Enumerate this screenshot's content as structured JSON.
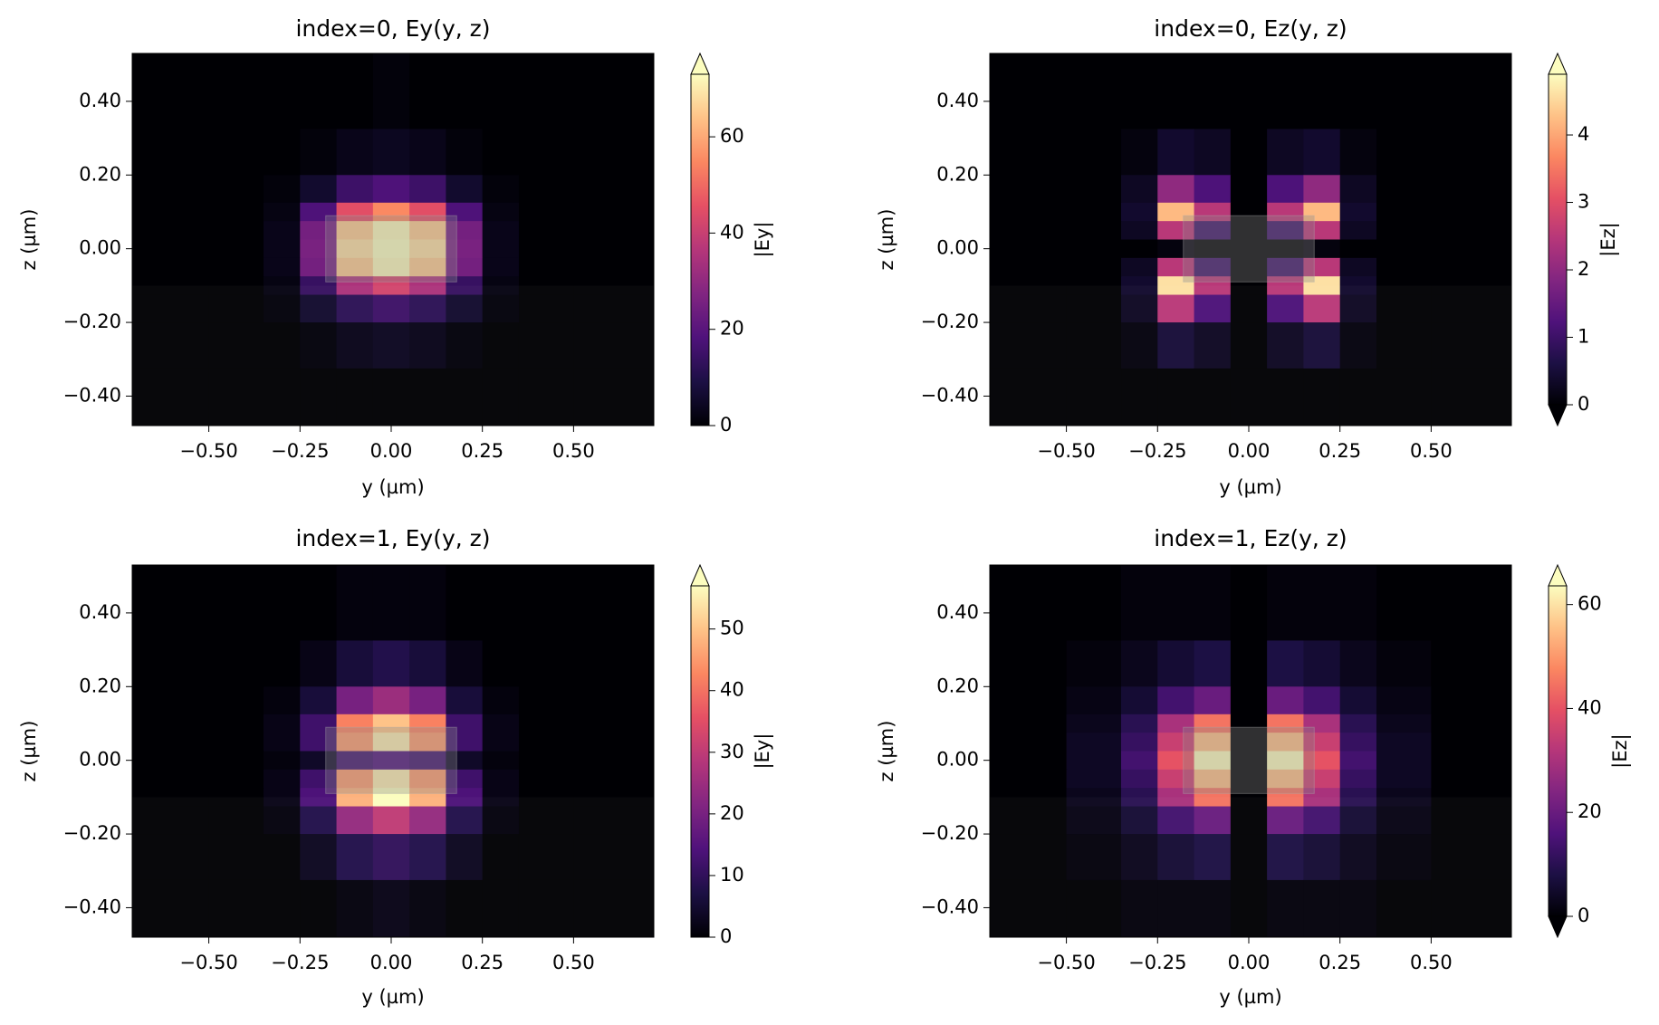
{
  "chart_data": [
    {
      "type": "heatmap",
      "title": "index=0, Ey(y, z)",
      "xlabel": "y (µm)",
      "ylabel": "z (µm)",
      "colorbar_label": "|Ey|",
      "colormap": "magma",
      "extend": "max",
      "xlim": [
        -0.71,
        0.72
      ],
      "ylim": [
        -0.48,
        0.53
      ],
      "xticks": [
        {
          "value": -0.5,
          "label": "−0.50"
        },
        {
          "value": -0.25,
          "label": "−0.25"
        },
        {
          "value": 0,
          "label": "0.00"
        },
        {
          "value": 0.25,
          "label": "0.25"
        },
        {
          "value": 0.5,
          "label": "0.50"
        }
      ],
      "yticks": [
        {
          "value": -0.4,
          "label": "−0.40"
        },
        {
          "value": -0.2,
          "label": "−0.20"
        },
        {
          "value": 0,
          "label": "0.00"
        },
        {
          "value": 0.2,
          "label": "0.20"
        },
        {
          "value": 0.4,
          "label": "0.40"
        }
      ],
      "clim": [
        0,
        73
      ],
      "cticks": [
        0,
        20,
        40,
        60
      ],
      "x": [
        -0.6,
        -0.4,
        -0.3,
        -0.2,
        -0.1,
        0,
        0.1,
        0.2,
        0.3,
        0.4,
        0.6
      ],
      "y": [
        0.4,
        0.25,
        0.15,
        0.1,
        0.05,
        0,
        -0.05,
        -0.1,
        -0.15,
        -0.25,
        -0.4
      ],
      "z": [
        [
          0,
          0,
          0,
          0,
          0,
          1,
          0,
          0,
          0,
          0,
          0
        ],
        [
          0,
          0,
          0,
          1,
          3,
          4,
          3,
          1,
          0,
          0,
          0
        ],
        [
          0,
          0,
          1,
          6,
          15,
          18,
          15,
          6,
          1,
          0,
          0
        ],
        [
          0,
          0,
          2,
          18,
          45,
          55,
          45,
          18,
          2,
          0,
          0
        ],
        [
          0,
          0,
          3,
          25,
          65,
          72,
          65,
          25,
          3,
          0,
          0
        ],
        [
          0,
          0,
          3,
          26,
          68,
          73,
          68,
          26,
          3,
          0,
          0
        ],
        [
          0,
          0,
          3,
          25,
          65,
          72,
          65,
          25,
          3,
          0,
          0
        ],
        [
          0,
          0,
          2,
          14,
          35,
          42,
          35,
          14,
          2,
          0,
          0
        ],
        [
          0,
          0,
          1,
          6,
          12,
          15,
          12,
          6,
          1,
          0,
          0
        ],
        [
          0,
          0,
          0,
          1,
          3,
          4,
          3,
          1,
          0,
          0,
          0
        ],
        [
          0,
          0,
          0,
          0,
          0,
          0,
          0,
          0,
          0,
          0,
          0
        ]
      ]
    },
    {
      "type": "heatmap",
      "title": "index=0, Ez(y, z)",
      "xlabel": "y (µm)",
      "ylabel": "z (µm)",
      "colorbar_label": "|Ez|",
      "colormap": "magma",
      "extend": "both",
      "xlim": [
        -0.71,
        0.72
      ],
      "ylim": [
        -0.48,
        0.53
      ],
      "xticks": [
        {
          "value": -0.5,
          "label": "−0.50"
        },
        {
          "value": -0.25,
          "label": "−0.25"
        },
        {
          "value": 0,
          "label": "0.00"
        },
        {
          "value": 0.25,
          "label": "0.25"
        },
        {
          "value": 0.5,
          "label": "0.50"
        }
      ],
      "yticks": [
        {
          "value": -0.4,
          "label": "−0.40"
        },
        {
          "value": -0.2,
          "label": "−0.20"
        },
        {
          "value": 0,
          "label": "0.00"
        },
        {
          "value": 0.2,
          "label": "0.20"
        },
        {
          "value": 0.4,
          "label": "0.40"
        }
      ],
      "clim": [
        0,
        4.9
      ],
      "cticks": [
        0,
        1,
        2,
        3,
        4
      ],
      "x": [
        -0.6,
        -0.4,
        -0.3,
        -0.2,
        -0.1,
        0,
        0.1,
        0.2,
        0.3,
        0.4,
        0.6
      ],
      "y": [
        0.4,
        0.25,
        0.15,
        0.1,
        0.05,
        0,
        -0.05,
        -0.1,
        -0.15,
        -0.25,
        -0.4
      ],
      "z": [
        [
          0,
          0,
          0,
          0,
          0,
          0,
          0,
          0,
          0,
          0,
          0
        ],
        [
          0,
          0,
          0.1,
          0.4,
          0.3,
          0,
          0.3,
          0.4,
          0.1,
          0,
          0
        ],
        [
          0,
          0,
          0.3,
          2.0,
          1.2,
          0,
          1.2,
          2.0,
          0.3,
          0,
          0
        ],
        [
          0,
          0,
          0.4,
          4.2,
          2.5,
          0,
          2.5,
          4.2,
          0.4,
          0,
          0
        ],
        [
          0,
          0,
          0.3,
          2.5,
          1.0,
          0,
          1.0,
          2.5,
          0.3,
          0,
          0
        ],
        [
          0,
          0,
          0,
          0.1,
          0,
          0,
          0,
          0.1,
          0,
          0,
          0
        ],
        [
          0,
          0,
          0.3,
          2.5,
          1.0,
          0,
          1.0,
          2.5,
          0.3,
          0,
          0
        ],
        [
          0,
          0,
          0.4,
          4.6,
          2.5,
          0,
          2.5,
          4.6,
          0.4,
          0,
          0
        ],
        [
          0,
          0,
          0.3,
          2.5,
          1.2,
          0,
          1.2,
          2.5,
          0.3,
          0,
          0
        ],
        [
          0,
          0,
          0.1,
          0.5,
          0.3,
          0,
          0.3,
          0.5,
          0.1,
          0,
          0
        ],
        [
          0,
          0,
          0,
          0,
          0,
          0,
          0,
          0,
          0,
          0,
          0
        ]
      ]
    },
    {
      "type": "heatmap",
      "title": "index=1, Ey(y, z)",
      "xlabel": "y (µm)",
      "ylabel": "z (µm)",
      "colorbar_label": "|Ey|",
      "colormap": "magma",
      "extend": "max",
      "xlim": [
        -0.71,
        0.72
      ],
      "ylim": [
        -0.48,
        0.53
      ],
      "xticks": [
        {
          "value": -0.5,
          "label": "−0.50"
        },
        {
          "value": -0.25,
          "label": "−0.25"
        },
        {
          "value": 0,
          "label": "0.00"
        },
        {
          "value": 0.25,
          "label": "0.25"
        },
        {
          "value": 0.5,
          "label": "0.50"
        }
      ],
      "yticks": [
        {
          "value": -0.4,
          "label": "−0.40"
        },
        {
          "value": -0.2,
          "label": "−0.20"
        },
        {
          "value": 0,
          "label": "0.00"
        },
        {
          "value": 0.2,
          "label": "0.20"
        },
        {
          "value": 0.4,
          "label": "0.40"
        }
      ],
      "clim": [
        0,
        57
      ],
      "cticks": [
        0,
        10,
        20,
        30,
        40,
        50
      ],
      "x": [
        -0.6,
        -0.4,
        -0.3,
        -0.2,
        -0.1,
        0,
        0.1,
        0.2,
        0.3,
        0.4,
        0.6
      ],
      "y": [
        0.4,
        0.25,
        0.15,
        0.1,
        0.05,
        0,
        -0.05,
        -0.1,
        -0.15,
        -0.25,
        -0.4
      ],
      "z": [
        [
          0,
          0,
          0,
          0,
          1,
          1,
          1,
          0,
          0,
          0,
          0
        ],
        [
          0,
          0,
          0,
          2,
          6,
          8,
          6,
          2,
          0,
          0,
          0
        ],
        [
          0,
          0,
          1,
          6,
          20,
          25,
          20,
          6,
          1,
          0,
          0
        ],
        [
          0,
          0,
          2,
          12,
          42,
          50,
          42,
          12,
          2,
          0,
          0
        ],
        [
          0,
          0,
          2,
          12,
          45,
          55,
          45,
          12,
          2,
          0,
          0
        ],
        [
          0,
          0,
          1,
          4,
          12,
          14,
          12,
          4,
          1,
          0,
          0
        ],
        [
          0,
          0,
          2,
          12,
          45,
          55,
          45,
          12,
          2,
          0,
          0
        ],
        [
          0,
          0,
          2,
          14,
          48,
          57,
          48,
          14,
          2,
          0,
          0
        ],
        [
          0,
          0,
          1,
          8,
          24,
          30,
          24,
          8,
          1,
          0,
          0
        ],
        [
          0,
          0,
          0,
          3,
          8,
          10,
          8,
          3,
          0,
          0,
          0
        ],
        [
          0,
          0,
          0,
          0,
          1,
          2,
          1,
          0,
          0,
          0,
          0
        ]
      ]
    },
    {
      "type": "heatmap",
      "title": "index=1, Ez(y, z)",
      "xlabel": "y (µm)",
      "ylabel": "z (µm)",
      "colorbar_label": "|Ez|",
      "colormap": "magma",
      "extend": "both",
      "xlim": [
        -0.71,
        0.72
      ],
      "ylim": [
        -0.48,
        0.53
      ],
      "xticks": [
        {
          "value": -0.5,
          "label": "−0.50"
        },
        {
          "value": -0.25,
          "label": "−0.25"
        },
        {
          "value": 0,
          "label": "0.00"
        },
        {
          "value": 0.25,
          "label": "0.25"
        },
        {
          "value": 0.5,
          "label": "0.50"
        }
      ],
      "yticks": [
        {
          "value": -0.4,
          "label": "−0.40"
        },
        {
          "value": -0.2,
          "label": "−0.20"
        },
        {
          "value": 0,
          "label": "0.00"
        },
        {
          "value": 0.2,
          "label": "0.20"
        },
        {
          "value": 0.4,
          "label": "0.40"
        }
      ],
      "clim": [
        0,
        63.6
      ],
      "cticks": [
        0,
        20,
        40,
        60
      ],
      "x": [
        -0.6,
        -0.4,
        -0.3,
        -0.2,
        -0.1,
        0,
        0.1,
        0.2,
        0.3,
        0.4,
        0.6
      ],
      "y": [
        0.4,
        0.25,
        0.15,
        0.1,
        0.05,
        0,
        -0.05,
        -0.1,
        -0.15,
        -0.25,
        -0.4
      ],
      "z": [
        [
          0,
          0,
          1,
          1,
          1,
          0,
          1,
          1,
          1,
          0,
          0
        ],
        [
          0,
          1,
          3,
          6,
          8,
          0,
          8,
          6,
          3,
          1,
          0
        ],
        [
          0,
          2,
          6,
          14,
          20,
          0,
          20,
          14,
          6,
          2,
          0
        ],
        [
          0,
          3,
          10,
          30,
          45,
          0,
          45,
          30,
          10,
          3,
          0
        ],
        [
          0,
          4,
          12,
          35,
          55,
          0,
          55,
          35,
          12,
          4,
          0
        ],
        [
          0,
          4,
          14,
          40,
          63,
          0,
          63,
          40,
          14,
          4,
          0
        ],
        [
          0,
          4,
          12,
          35,
          55,
          0,
          55,
          35,
          12,
          4,
          0
        ],
        [
          0,
          3,
          10,
          30,
          45,
          0,
          45,
          30,
          10,
          3,
          0
        ],
        [
          0,
          2,
          6,
          14,
          20,
          0,
          20,
          14,
          6,
          2,
          0
        ],
        [
          0,
          1,
          3,
          6,
          8,
          0,
          8,
          6,
          3,
          1,
          0
        ],
        [
          0,
          0,
          1,
          1,
          1,
          0,
          1,
          1,
          1,
          0,
          0
        ]
      ]
    }
  ]
}
